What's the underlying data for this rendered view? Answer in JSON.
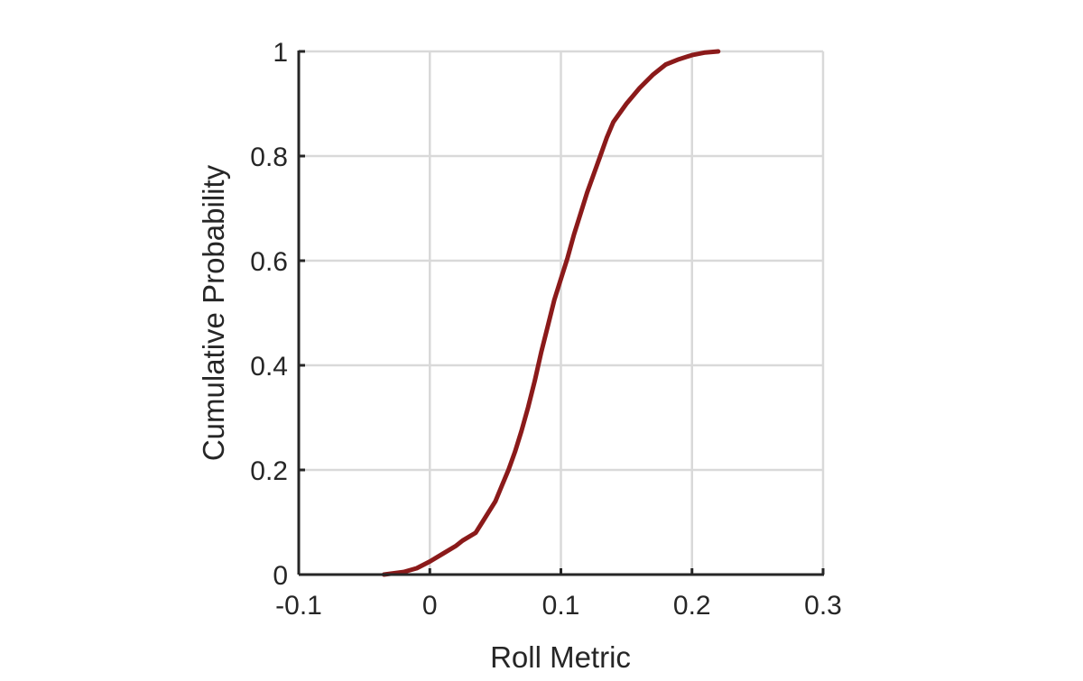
{
  "chart_data": {
    "type": "line",
    "title": "",
    "xlabel": "Roll Metric",
    "ylabel": "Cumulative Probability",
    "xlim": [
      -0.1,
      0.3
    ],
    "ylim": [
      0,
      1
    ],
    "xticks": [
      -0.1,
      0,
      0.1,
      0.2,
      0.3
    ],
    "yticks": [
      0,
      0.2,
      0.4,
      0.6,
      0.8,
      1
    ],
    "xtick_labels": [
      "-0.1",
      "0",
      "0.1",
      "0.2",
      "0.3"
    ],
    "ytick_labels": [
      "0",
      "0.2",
      "0.4",
      "0.6",
      "0.8",
      "1"
    ],
    "grid": true,
    "legend": "none",
    "colors": {
      "line": "#8b1a1a",
      "grid": "#d9d9d9",
      "axis": "#262626"
    },
    "series": [
      {
        "x": [
          -0.035,
          -0.02,
          -0.01,
          0.0,
          0.01,
          0.02,
          0.025,
          0.035,
          0.04,
          0.05,
          0.055,
          0.06,
          0.065,
          0.07,
          0.075,
          0.08,
          0.085,
          0.09,
          0.095,
          0.1,
          0.105,
          0.11,
          0.115,
          0.12,
          0.125,
          0.13,
          0.135,
          0.14,
          0.15,
          0.16,
          0.17,
          0.18,
          0.19,
          0.2,
          0.21,
          0.22
        ],
        "y": [
          0.0,
          0.005,
          0.012,
          0.025,
          0.04,
          0.055,
          0.065,
          0.08,
          0.1,
          0.14,
          0.17,
          0.2,
          0.235,
          0.275,
          0.32,
          0.37,
          0.425,
          0.475,
          0.525,
          0.565,
          0.605,
          0.65,
          0.69,
          0.73,
          0.765,
          0.8,
          0.835,
          0.865,
          0.9,
          0.93,
          0.955,
          0.975,
          0.985,
          0.993,
          0.998,
          1.0
        ]
      }
    ]
  }
}
